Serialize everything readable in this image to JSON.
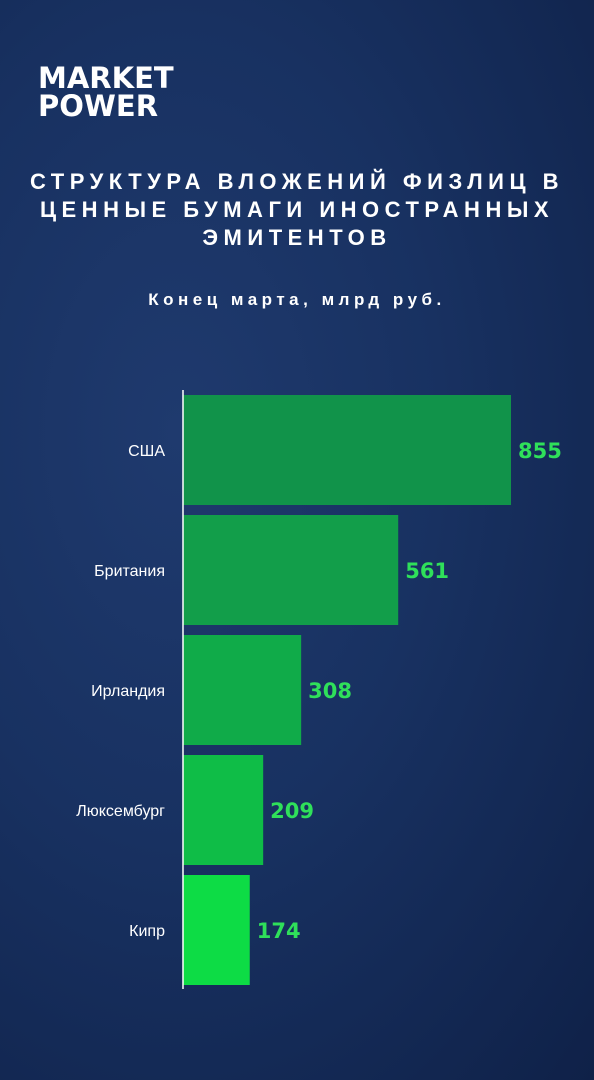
{
  "logo": {
    "line1": "MARKET",
    "line2": "POWER"
  },
  "title": {
    "line1": "СТРУКТУРА ВЛОЖЕНИЙ ФИЗЛИЦ В",
    "line2": "ЦЕННЫЕ БУМАГИ ИНОСТРАННЫХ",
    "line3": "ЭМИТЕНТОВ"
  },
  "subtitle": "Конец марта, млрд руб.",
  "colors": {
    "bar_colors": [
      "#11934a",
      "#129e4a",
      "#10ab49",
      "#0fbd47",
      "#0ddc45"
    ],
    "value_label": "#2fe05a",
    "axis": "#ffffff"
  },
  "chart_data": {
    "type": "bar",
    "orientation": "horizontal",
    "title": "СТРУКТУРА ВЛОЖЕНИЙ ФИЗЛИЦ В ЦЕННЫЕ БУМАГИ ИНОСТРАННЫХ ЭМИТЕНТОВ",
    "subtitle": "Конец марта, млрд руб.",
    "categories": [
      "США",
      "Британия",
      "Ирландия",
      "Люксембург",
      "Кипр"
    ],
    "values": [
      855,
      561,
      308,
      209,
      174
    ],
    "xlim": [
      0,
      855
    ],
    "grid": false,
    "legend": "none"
  }
}
